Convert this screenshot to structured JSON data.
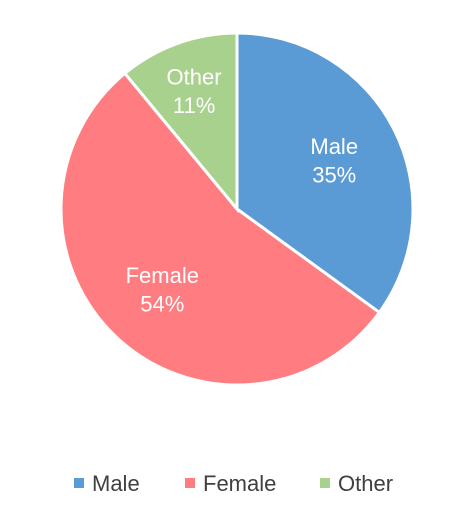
{
  "chart_data": {
    "type": "pie",
    "categories": [
      "Male",
      "Female",
      "Other"
    ],
    "values": [
      35,
      54,
      11
    ],
    "value_labels": [
      "35%",
      "54%",
      "11%"
    ],
    "colors": [
      "#5b9bd5",
      "#ff7c80",
      "#a9d18e"
    ],
    "legend_position": "bottom",
    "start_angle": "12 o'clock",
    "direction": "clockwise"
  }
}
